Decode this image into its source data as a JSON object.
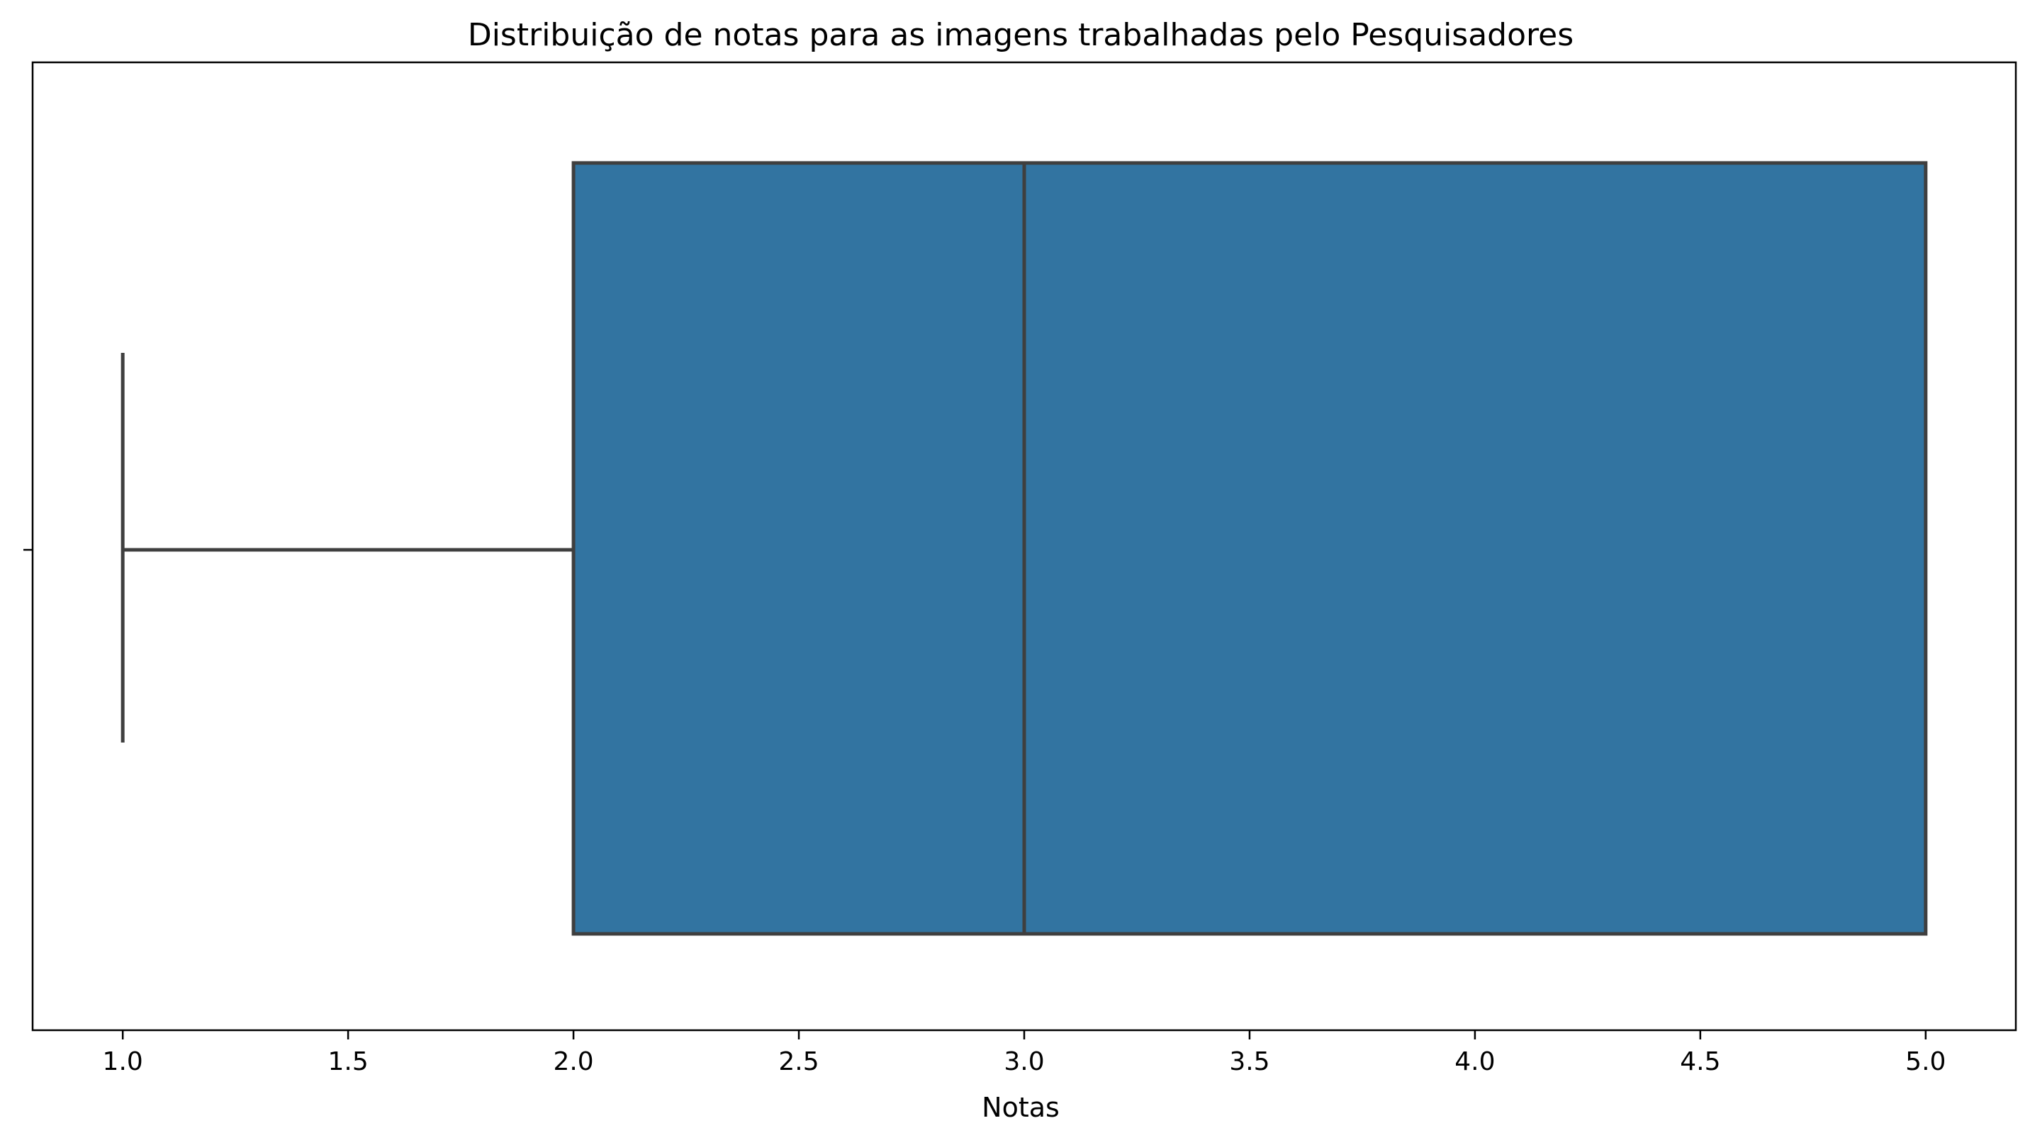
{
  "chart_data": {
    "type": "box",
    "title": "Distribuição de notas para as imagens trabalhadas pelo Pesquisadores",
    "xlabel": "Notas",
    "ylabel": "",
    "orientation": "horizontal",
    "xlim": [
      0.8,
      5.2
    ],
    "xticks": [
      1.0,
      1.5,
      2.0,
      2.5,
      3.0,
      3.5,
      4.0,
      4.5,
      5.0
    ],
    "xtick_labels": [
      "1.0",
      "1.5",
      "2.0",
      "2.5",
      "3.0",
      "3.5",
      "4.0",
      "4.5",
      "5.0"
    ],
    "grid": false,
    "legend": "none",
    "series": [
      {
        "whisker_low": 1.0,
        "q1": 2.0,
        "median": 3.0,
        "q3": 5.0,
        "whisker_high": 5.0
      }
    ],
    "colors": {
      "box_fill": "#3274a1",
      "line": "#3f3f3f",
      "axes": "#000000"
    }
  }
}
